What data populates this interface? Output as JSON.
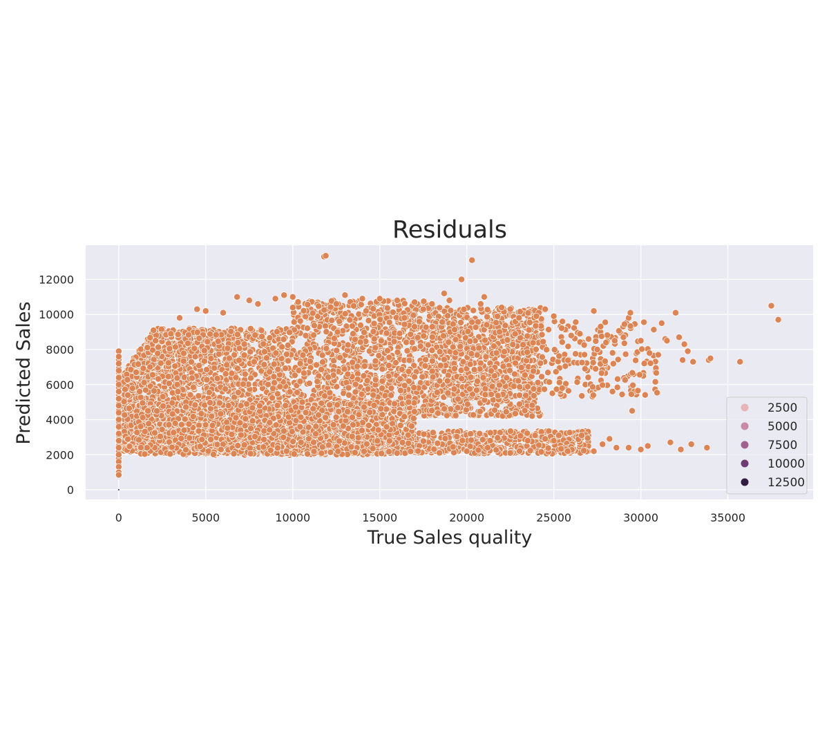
{
  "chart_data": {
    "type": "scatter",
    "title": "Residuals",
    "xlabel": "True Sales quality",
    "ylabel": "Predicted Sales",
    "xlim": [
      -1900,
      39900
    ],
    "ylim": [
      -550,
      13950
    ],
    "xticks": [
      0,
      5000,
      10000,
      15000,
      20000,
      25000,
      30000,
      35000
    ],
    "yticks": [
      0,
      2000,
      4000,
      6000,
      8000,
      10000,
      12000
    ],
    "grid": true,
    "background": "#eaeaf2",
    "point_color": "#dd8452",
    "point_edge_color": "#ffffff",
    "legend": {
      "placement": "lower-right",
      "entries": [
        {
          "label": "2500",
          "color": "#e7b5b5"
        },
        {
          "label": "5000",
          "color": "#c98aa4"
        },
        {
          "label": "7500",
          "color": "#a2608f"
        },
        {
          "label": "10000",
          "color": "#6e3b74"
        },
        {
          "label": "12500",
          "color": "#311c42"
        }
      ]
    },
    "point_count_estimate": 30000,
    "cluster_regions": [
      {
        "name": "zero-true-sales-column",
        "x": 0,
        "y_range": [
          800,
          7900
        ]
      },
      {
        "name": "main-upper-band",
        "x_range": [
          500,
          33000
        ],
        "y_range": [
          1800,
          11100
        ]
      },
      {
        "name": "lower-band",
        "x_range": [
          10000,
          34000
        ],
        "y_range": [
          2100,
          3400
        ]
      }
    ],
    "series": [
      {
        "x": [
          0,
          0,
          0,
          0,
          0,
          0,
          0,
          0,
          0,
          0,
          0,
          0,
          0,
          0,
          0,
          0,
          0,
          0,
          0,
          0,
          520,
          1000,
          1200,
          1800,
          2000,
          3000,
          3500,
          4500,
          5000,
          6000,
          6800,
          7500,
          8000,
          9000,
          9500,
          10000,
          11800,
          11900,
          12500,
          13000,
          14000,
          15000,
          16000,
          17000,
          17500,
          18000,
          18700,
          19000,
          19700,
          20300,
          20800,
          21000,
          22000,
          22500,
          23000,
          24000,
          24500,
          25000,
          25500,
          26000,
          26500,
          27000,
          27300,
          27500,
          28000,
          28500,
          29000,
          29300,
          29400,
          29500,
          30000,
          30200,
          30500,
          31000,
          31200,
          31400,
          31500,
          32000,
          32200,
          32400,
          32500,
          32700,
          33000,
          33900,
          34000,
          35700,
          37500,
          37900,
          20000,
          21200,
          22500,
          23500,
          24500,
          25000,
          25800,
          26600,
          27300,
          27800,
          28200,
          28600,
          29300,
          30000,
          30400,
          31700,
          32300,
          32900,
          33800,
          29500
        ],
        "y": [
          7900,
          7600,
          7200,
          6800,
          6400,
          6000,
          5600,
          5200,
          4800,
          4400,
          4000,
          3600,
          3200,
          2800,
          2400,
          2000,
          1600,
          1300,
          1000,
          850,
          5400,
          6700,
          5600,
          7000,
          9100,
          8900,
          9800,
          10300,
          10200,
          10100,
          11000,
          10800,
          10600,
          10900,
          11100,
          11000,
          13300,
          13350,
          10600,
          11100,
          10900,
          10900,
          10800,
          10700,
          10300,
          10600,
          11200,
          10800,
          12000,
          13100,
          10600,
          11000,
          10400,
          10300,
          9800,
          9900,
          10300,
          9900,
          9600,
          8800,
          8900,
          8600,
          10200,
          8000,
          8400,
          8500,
          8700,
          9800,
          10100,
          4500,
          8500,
          7200,
          7800,
          7700,
          9500,
          8600,
          8500,
          10100,
          8700,
          7400,
          8300,
          7900,
          7300,
          7400,
          7500,
          7300,
          10500,
          9700,
          2200,
          2400,
          2100,
          2800,
          2900,
          2800,
          2200,
          3100,
          2200,
          2600,
          2900,
          2400,
          2400,
          2300,
          2500,
          2700,
          2300,
          2600,
          2400,
          4500
        ]
      }
    ]
  }
}
